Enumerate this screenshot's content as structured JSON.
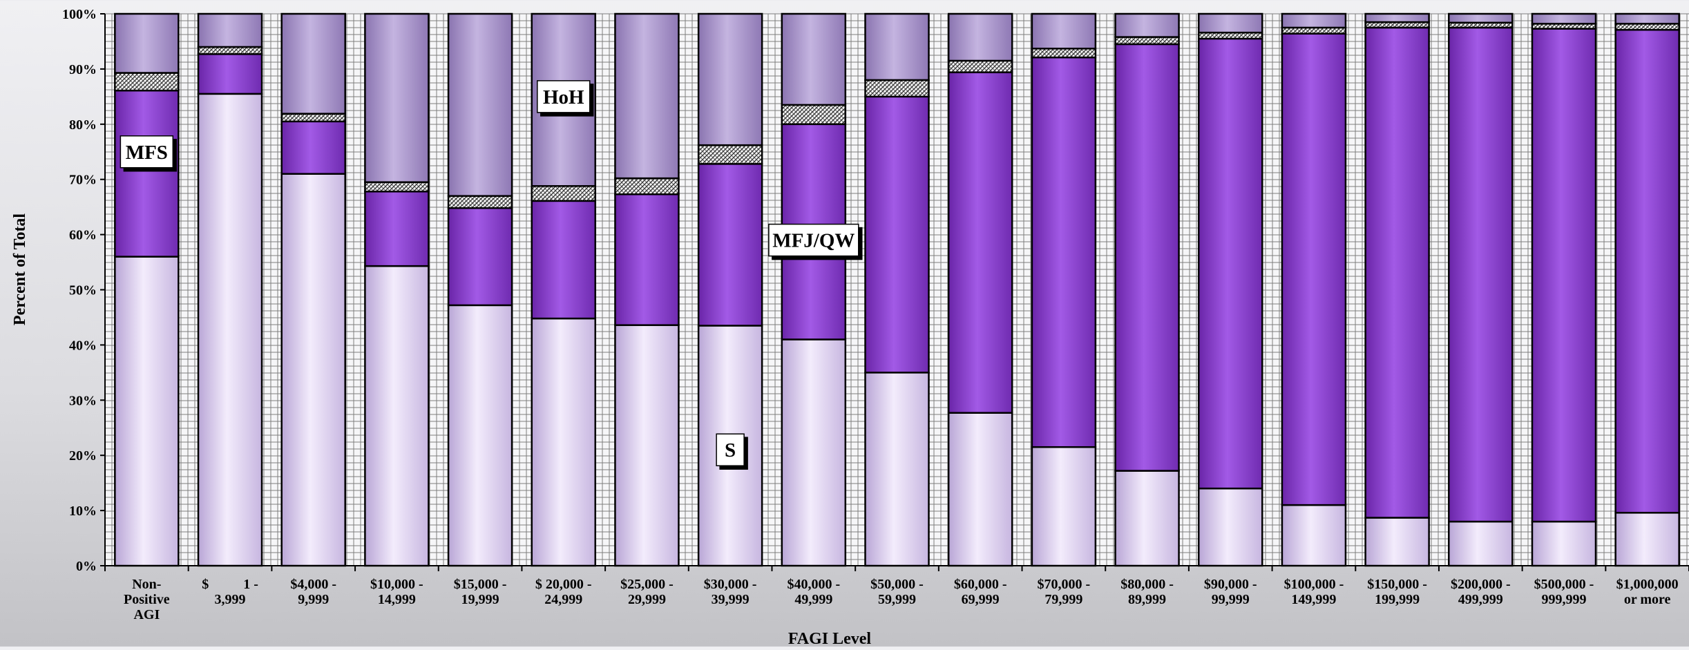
{
  "chart_data": {
    "type": "bar",
    "stacked": true,
    "percent_stacked": true,
    "xlabel": "FAGI Level",
    "ylabel": "Percent of Total",
    "ylim": [
      0,
      100
    ],
    "yticks": [
      "0%",
      "10%",
      "20%",
      "30%",
      "40%",
      "50%",
      "60%",
      "70%",
      "80%",
      "90%",
      "100%"
    ],
    "grid": true,
    "categories": [
      "Non-Positive AGI",
      "$ 1 - 3,999",
      "$4,000 - 9,999",
      "$10,000 - 14,999",
      "$15,000 - 19,999",
      "$ 20,000 - 24,999",
      "$25,000 - 29,999",
      "$30,000 - 39,999",
      "$40,000 - 49,999",
      "$50,000 - 59,999",
      "$60,000 - 69,999",
      "$70,000 - 79,999",
      "$80,000 - 89,999",
      "$90,000 - 99,999",
      "$100,000 - 149,999",
      "$150,000 - 199,999",
      "$200,000 - 499,999",
      "$500,000 - 999,999",
      "$1,000,000 or more"
    ],
    "category_label_lines": [
      [
        "Non-",
        "Positive",
        "AGI"
      ],
      [
        "$          1 -",
        "3,999"
      ],
      [
        "$4,000 -",
        "9,999"
      ],
      [
        "$10,000 -",
        "14,999"
      ],
      [
        "$15,000 -",
        "19,999"
      ],
      [
        "$ 20,000 -",
        "24,999"
      ],
      [
        "$25,000 -",
        "29,999"
      ],
      [
        "$30,000 -",
        "39,999"
      ],
      [
        "$40,000 -",
        "49,999"
      ],
      [
        "$50,000 -",
        "59,999"
      ],
      [
        "$60,000 -",
        "69,999"
      ],
      [
        "$70,000 -",
        "79,999"
      ],
      [
        "$80,000 -",
        "89,999"
      ],
      [
        "$90,000 -",
        "99,999"
      ],
      [
        "$100,000 -",
        "149,999"
      ],
      [
        "$150,000 -",
        "199,999"
      ],
      [
        "$200,000 -",
        "499,999"
      ],
      [
        "$500,000 -",
        "999,999"
      ],
      [
        "$1,000,000",
        "or more"
      ]
    ],
    "series": [
      {
        "name": "S",
        "color": "#ddd0f0",
        "values": [
          56,
          85.5,
          71,
          54.3,
          47.2,
          44.8,
          43.6,
          43.5,
          41,
          35,
          27.7,
          21.5,
          17.2,
          14,
          11,
          8.7,
          8,
          8,
          9.6
        ]
      },
      {
        "name": "MFJ/QW",
        "color": "#8a3fd0",
        "values": [
          30.1,
          7.2,
          9.5,
          13.5,
          17.6,
          21.3,
          23.7,
          29.3,
          39,
          50,
          61.7,
          70.6,
          77.3,
          81.5,
          85.4,
          88.8,
          89.5,
          89.3,
          87.5
        ]
      },
      {
        "name": "MFS",
        "color": "#9c9c9c",
        "values": [
          3.2,
          1.3,
          1.4,
          1.7,
          2.2,
          2.7,
          2.9,
          3.4,
          3.5,
          3,
          2.1,
          1.6,
          1.3,
          1.1,
          1.1,
          1,
          0.9,
          0.9,
          1.1
        ]
      },
      {
        "name": "HoH",
        "color": "#a896c8",
        "values": [
          10.7,
          6,
          18.1,
          30.5,
          33,
          31.2,
          29.8,
          23.8,
          16.5,
          12,
          8.5,
          6.3,
          4.2,
          3.4,
          2.5,
          1.5,
          1.6,
          1.8,
          1.8
        ]
      }
    ],
    "annotations": [
      {
        "text": "MFS",
        "category": 0,
        "y": 75
      },
      {
        "text": "HoH",
        "category": 5,
        "y": 85
      },
      {
        "text": "MFJ/QW",
        "category": 8,
        "y": 59
      },
      {
        "text": "S",
        "category": 7,
        "y": 21
      }
    ]
  }
}
